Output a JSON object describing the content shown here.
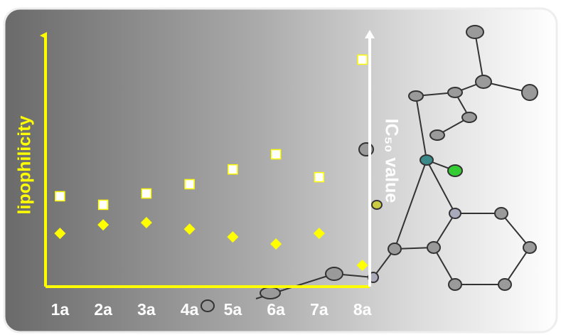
{
  "chart_data": {
    "type": "scatter",
    "ylabel": "lipophilicity",
    "y2label": "IC₅₀ value",
    "categories": [
      "1a",
      "2a",
      "3a",
      "4a",
      "5a",
      "6a",
      "7a",
      "8a"
    ],
    "ylim": [
      0,
      100
    ],
    "y2lim": [
      0,
      100
    ],
    "series": [
      {
        "color": "#ffff00",
        "marker": "diamond",
        "values": [
          21.2,
          24.6,
          25.5,
          22.9,
          19.8,
          17.0,
          21.2,
          8.5
        ]
      },
      {
        "color": "#ffff00",
        "marker": "square",
        "axis": "y2",
        "values": [
          36.0,
          32.6,
          37.1,
          40.8,
          46.7,
          52.7,
          43.6,
          90.4
        ]
      }
    ]
  }
}
